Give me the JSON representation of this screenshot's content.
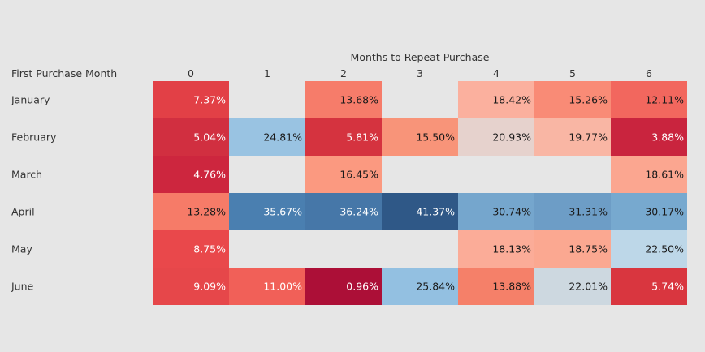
{
  "chart_data": {
    "type": "heatmap",
    "title": "",
    "xlabel": "Months to Repeat Purchase",
    "ylabel": "First Purchase Month",
    "columns": [
      "0",
      "1",
      "2",
      "3",
      "4",
      "5",
      "6"
    ],
    "rows": [
      "January",
      "February",
      "March",
      "April",
      "May",
      "June"
    ],
    "values": [
      [
        7.37,
        null,
        13.68,
        null,
        18.42,
        15.26,
        12.11
      ],
      [
        5.04,
        24.81,
        5.81,
        15.5,
        20.93,
        19.77,
        3.88
      ],
      [
        4.76,
        null,
        16.45,
        null,
        null,
        null,
        18.61
      ],
      [
        13.28,
        35.67,
        36.24,
        41.37,
        30.74,
        31.31,
        30.17
      ],
      [
        8.75,
        null,
        null,
        null,
        18.13,
        18.75,
        22.5
      ],
      [
        9.09,
        11.0,
        0.96,
        25.84,
        13.88,
        22.01,
        5.74
      ]
    ],
    "labels": [
      [
        "7.37%",
        "",
        "13.68%",
        "",
        "18.42%",
        "15.26%",
        "12.11%"
      ],
      [
        "5.04%",
        "24.81%",
        "5.81%",
        "15.50%",
        "20.93%",
        "19.77%",
        "3.88%"
      ],
      [
        "4.76%",
        "",
        "16.45%",
        "",
        "",
        "",
        "18.61%"
      ],
      [
        "13.28%",
        "35.67%",
        "36.24%",
        "41.37%",
        "30.74%",
        "31.31%",
        "30.17%"
      ],
      [
        "8.75%",
        "",
        "",
        "",
        "18.13%",
        "18.75%",
        "22.50%"
      ],
      [
        "9.09%",
        "11.00%",
        "0.96%",
        "25.84%",
        "13.88%",
        "22.01%",
        "5.74%"
      ]
    ],
    "value_unit": "%",
    "color_scale": "diverging red-white-blue",
    "grid": false,
    "legend": "none"
  },
  "colors": {
    "background": "#e6e6e6",
    "text": "#333333",
    "cells": [
      [
        "#e24046",
        null,
        "#f67c6a",
        null,
        "#fbb09e",
        "#f98b76",
        "#f2675e"
      ],
      [
        "#d12f40",
        "#99c3e2",
        "#d5333f",
        "#f89479",
        "#e6d2cd",
        "#f9b6a4",
        "#c9243e"
      ],
      [
        "#cd263e",
        null,
        "#fb9980",
        null,
        null,
        null,
        "#fba690"
      ],
      [
        "#f67b68",
        "#4a7fb0",
        "#4677a8",
        "#2f5887",
        "#75a6cd",
        "#6d9dc6",
        "#77a9cf"
      ],
      [
        "#e9484b",
        null,
        null,
        null,
        "#fbac98",
        "#fba891",
        "#bdd7e8"
      ],
      [
        "#e6474a",
        "#f16058",
        "#ac0f37",
        "#93c0e1",
        "#f58069",
        "#cdd8e0",
        "#d9363f"
      ]
    ]
  }
}
